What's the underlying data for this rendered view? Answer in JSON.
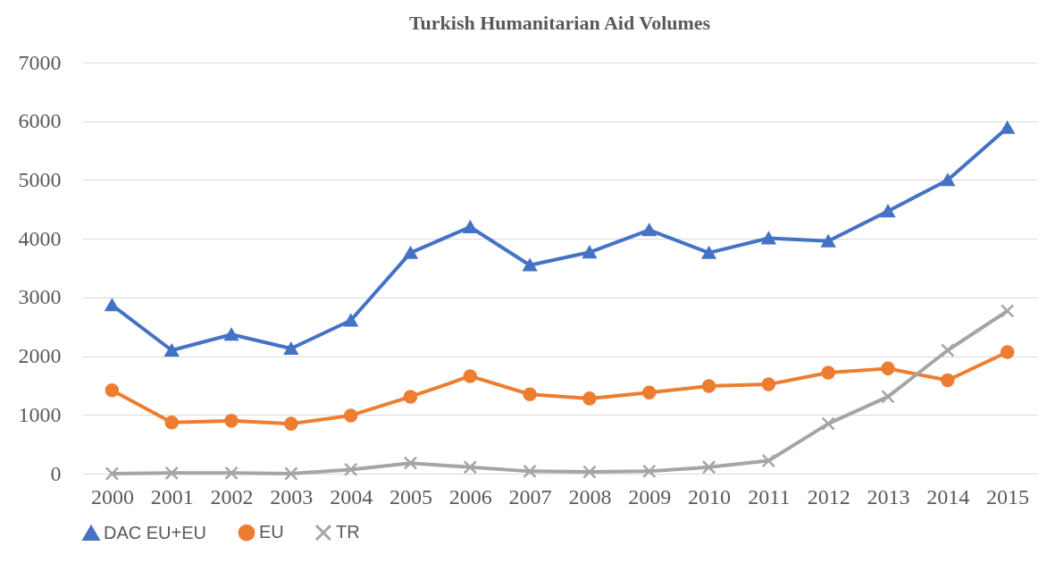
{
  "chart_data": {
    "type": "line",
    "title": "Turkish Humanitarian Aid Volumes",
    "categories": [
      "2000",
      "2001",
      "2002",
      "2003",
      "2004",
      "2005",
      "2006",
      "2007",
      "2008",
      "2009",
      "2010",
      "2011",
      "2012",
      "2013",
      "2014",
      "2015"
    ],
    "series": [
      {
        "name": "DAC EU+EU",
        "color": "#4472c4",
        "marker": "triangle",
        "values": [
          2870,
          2100,
          2370,
          2130,
          2610,
          3760,
          4200,
          3550,
          3770,
          4150,
          3760,
          4010,
          3960,
          4470,
          5000,
          5890
        ]
      },
      {
        "name": "EU",
        "color": "#ed7d31",
        "marker": "circle",
        "values": [
          1420,
          870,
          900,
          850,
          990,
          1310,
          1660,
          1350,
          1280,
          1380,
          1490,
          1520,
          1720,
          1790,
          1590,
          2070
        ]
      },
      {
        "name": "TR",
        "color": "#a5a5a5",
        "marker": "cross",
        "values": [
          0,
          10,
          10,
          0,
          70,
          180,
          110,
          40,
          30,
          40,
          110,
          220,
          850,
          1310,
          2100,
          2770
        ]
      }
    ],
    "ylim": [
      0,
      7000
    ],
    "yticks": [
      0,
      1000,
      2000,
      3000,
      4000,
      5000,
      6000,
      7000
    ],
    "grid": "y",
    "legend": "bottom",
    "line_style": "solid"
  }
}
